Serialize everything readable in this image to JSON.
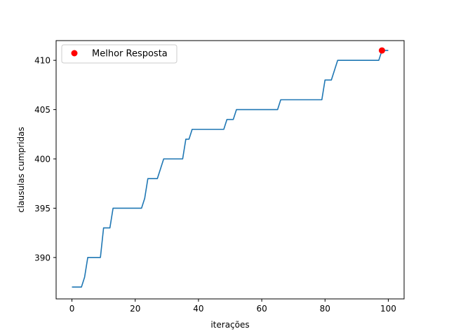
{
  "chart_data": {
    "type": "line",
    "title": "",
    "xlabel": "iterações",
    "ylabel": "clausulas cumpridas",
    "xlim": [
      -5,
      105
    ],
    "ylim": [
      385.8,
      412.0
    ],
    "xticks": [
      0,
      20,
      40,
      60,
      80,
      100
    ],
    "yticks": [
      390,
      395,
      400,
      405,
      410
    ],
    "grid": false,
    "legend_position": "top-left",
    "series": [
      {
        "kind": "line",
        "color": "#1f77b4",
        "points": [
          [
            0,
            387
          ],
          [
            1,
            387
          ],
          [
            2,
            387
          ],
          [
            3,
            387
          ],
          [
            4,
            388
          ],
          [
            5,
            390
          ],
          [
            6,
            390
          ],
          [
            7,
            390
          ],
          [
            8,
            390
          ],
          [
            9,
            390
          ],
          [
            10,
            393
          ],
          [
            11,
            393
          ],
          [
            12,
            393
          ],
          [
            13,
            395
          ],
          [
            14,
            395
          ],
          [
            15,
            395
          ],
          [
            16,
            395
          ],
          [
            17,
            395
          ],
          [
            18,
            395
          ],
          [
            19,
            395
          ],
          [
            20,
            395
          ],
          [
            21,
            395
          ],
          [
            22,
            395
          ],
          [
            23,
            396
          ],
          [
            24,
            398
          ],
          [
            25,
            398
          ],
          [
            26,
            398
          ],
          [
            27,
            398
          ],
          [
            28,
            399
          ],
          [
            29,
            400
          ],
          [
            30,
            400
          ],
          [
            31,
            400
          ],
          [
            32,
            400
          ],
          [
            33,
            400
          ],
          [
            34,
            400
          ],
          [
            35,
            400
          ],
          [
            36,
            402
          ],
          [
            37,
            402
          ],
          [
            38,
            403
          ],
          [
            39,
            403
          ],
          [
            40,
            403
          ],
          [
            41,
            403
          ],
          [
            42,
            403
          ],
          [
            43,
            403
          ],
          [
            44,
            403
          ],
          [
            45,
            403
          ],
          [
            46,
            403
          ],
          [
            47,
            403
          ],
          [
            48,
            403
          ],
          [
            49,
            404
          ],
          [
            50,
            404
          ],
          [
            51,
            404
          ],
          [
            52,
            405
          ],
          [
            53,
            405
          ],
          [
            54,
            405
          ],
          [
            55,
            405
          ],
          [
            56,
            405
          ],
          [
            57,
            405
          ],
          [
            58,
            405
          ],
          [
            59,
            405
          ],
          [
            60,
            405
          ],
          [
            61,
            405
          ],
          [
            62,
            405
          ],
          [
            63,
            405
          ],
          [
            64,
            405
          ],
          [
            65,
            405
          ],
          [
            66,
            406
          ],
          [
            67,
            406
          ],
          [
            68,
            406
          ],
          [
            69,
            406
          ],
          [
            70,
            406
          ],
          [
            71,
            406
          ],
          [
            72,
            406
          ],
          [
            73,
            406
          ],
          [
            74,
            406
          ],
          [
            75,
            406
          ],
          [
            76,
            406
          ],
          [
            77,
            406
          ],
          [
            78,
            406
          ],
          [
            79,
            406
          ],
          [
            80,
            408
          ],
          [
            81,
            408
          ],
          [
            82,
            408
          ],
          [
            83,
            409
          ],
          [
            84,
            410
          ],
          [
            85,
            410
          ],
          [
            86,
            410
          ],
          [
            87,
            410
          ],
          [
            88,
            410
          ],
          [
            89,
            410
          ],
          [
            90,
            410
          ],
          [
            91,
            410
          ],
          [
            92,
            410
          ],
          [
            93,
            410
          ],
          [
            94,
            410
          ],
          [
            95,
            410
          ],
          [
            96,
            410
          ],
          [
            97,
            410
          ],
          [
            98,
            411
          ],
          [
            99,
            411
          ],
          [
            100,
            411
          ]
        ]
      },
      {
        "kind": "point",
        "name": "Melhor Resposta",
        "color": "#ff0000",
        "points": [
          [
            98,
            411
          ]
        ]
      }
    ]
  }
}
